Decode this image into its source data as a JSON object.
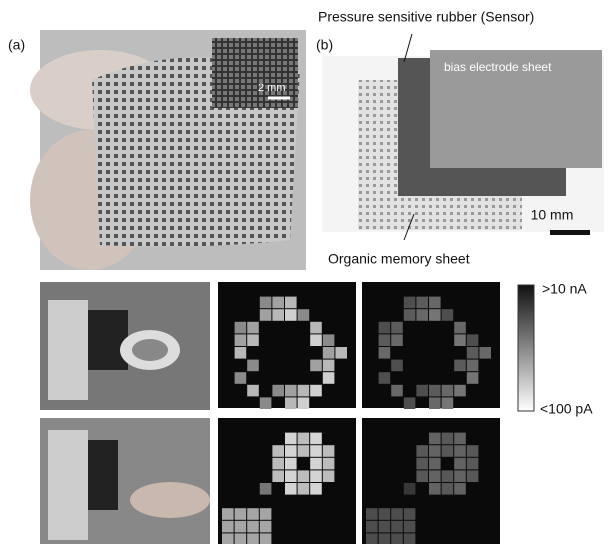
{
  "panel_a": {
    "label": "(a)",
    "inset_scale": "2 mm"
  },
  "panel_b": {
    "label": "(b)",
    "sensor_label": "Pressure sensitive rubber (Sensor)",
    "electrode_label": "bias electrode sheet",
    "scale": "10 mm",
    "memory_label": "Organic memory sheet"
  },
  "colorbar": {
    "max_label": ">10 nA",
    "min_label": "<100 pA"
  }
}
